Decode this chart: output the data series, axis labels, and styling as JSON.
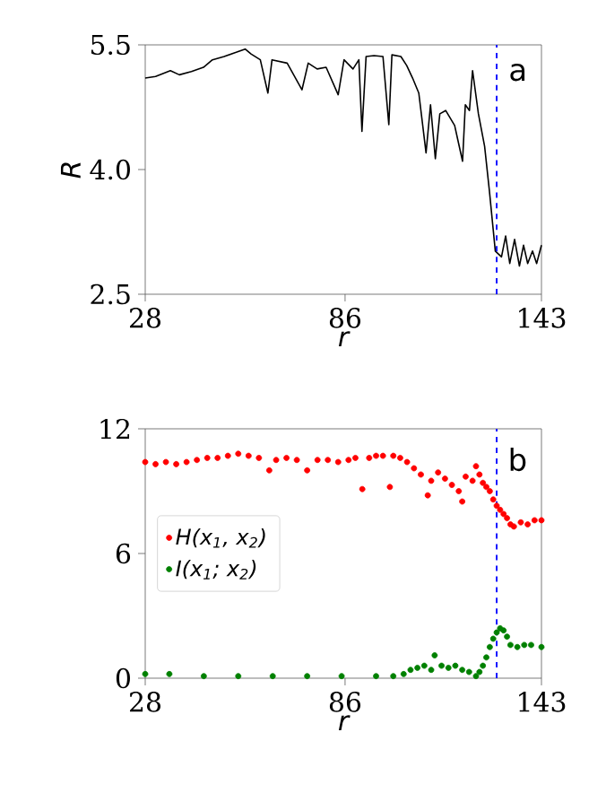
{
  "chart_data": [
    {
      "type": "line",
      "xlabel": "r",
      "ylabel": "R",
      "color": "#000000",
      "x": [
        28,
        31,
        35.3,
        37.9,
        41.4,
        44.9,
        47.5,
        50.9,
        54.4,
        57,
        58.7,
        61.4,
        63.6,
        64.8,
        69.2,
        73.5,
        75.3,
        77.9,
        80.5,
        84,
        85.7,
        88.3,
        90,
        90.9,
        92.1,
        94.4,
        97,
        98.7,
        99.6,
        102.2,
        103.9,
        105.6,
        107.4,
        109.5,
        110.8,
        112.2,
        113.5,
        115.2,
        117.8,
        120.1,
        120.9,
        122.1,
        123,
        124.7,
        126.5,
        127.9,
        129.6,
        131.4,
        132.6,
        133.8,
        135.2,
        136.6,
        137.8,
        139,
        140.4,
        141.6,
        143
      ],
      "values": [
        5.1,
        5.12,
        5.19,
        5.14,
        5.18,
        5.23,
        5.32,
        5.36,
        5.41,
        5.45,
        5.39,
        5.32,
        4.92,
        5.32,
        5.28,
        4.96,
        5.28,
        5.21,
        5.23,
        4.9,
        5.32,
        5.21,
        5.32,
        4.46,
        5.36,
        5.37,
        5.36,
        4.54,
        5.38,
        5.36,
        5.25,
        5.1,
        4.92,
        4.2,
        4.78,
        4.13,
        4.67,
        4.71,
        4.53,
        4.1,
        4.78,
        4.71,
        5.19,
        4.67,
        4.28,
        3.74,
        3.02,
        2.95,
        3.2,
        2.87,
        3.16,
        2.84,
        3.09,
        2.87,
        3.02,
        2.87,
        3.09
      ],
      "xlim": [
        28,
        143
      ],
      "ylim": [
        2.5,
        5.5
      ],
      "xticks": [
        28,
        86,
        143
      ],
      "yticks": [
        2.5,
        {
          "value": 4,
          "label": "4.0"
        },
        5.5
      ],
      "ref_lines": [
        {
          "axis": "x",
          "value": 130,
          "color": "#0000ff",
          "line_style": "dashed"
        }
      ],
      "annotations": [
        "a"
      ]
    },
    {
      "type": "scatter",
      "xlabel": "r",
      "marker": "circle",
      "legend": "left",
      "xlim": [
        28,
        143
      ],
      "ylim": [
        0,
        12
      ],
      "xticks": [
        28,
        86,
        143
      ],
      "yticks": [
        0,
        6,
        12
      ],
      "series": [
        {
          "name": "H(x$_{1}$, x$_{2}$)",
          "color": "#ff0000",
          "x": [
            28,
            31,
            34,
            37,
            40,
            43,
            46,
            49,
            52,
            55,
            58,
            61,
            64,
            66,
            69,
            72,
            75,
            78,
            81,
            84,
            87,
            89,
            91,
            93,
            95,
            97,
            99,
            100,
            102,
            104,
            106,
            108,
            110,
            111,
            113,
            115,
            117,
            119,
            120,
            121,
            123,
            124,
            125,
            126,
            127,
            128,
            129,
            130,
            131,
            132,
            133,
            134,
            135,
            137,
            139,
            141,
            143
          ],
          "values": [
            10.4,
            10.3,
            10.4,
            10.3,
            10.4,
            10.5,
            10.6,
            10.6,
            10.7,
            10.8,
            10.7,
            10.6,
            10.0,
            10.5,
            10.6,
            10.5,
            10.0,
            10.5,
            10.5,
            10.4,
            10.5,
            10.6,
            9.1,
            10.6,
            10.7,
            10.7,
            9.2,
            10.7,
            10.6,
            10.4,
            10.1,
            9.8,
            8.8,
            9.5,
            9.9,
            9.6,
            9.3,
            9.0,
            8.5,
            9.7,
            9.5,
            10.2,
            9.8,
            9.4,
            9.2,
            9.0,
            8.6,
            8.3,
            8.1,
            7.9,
            7.7,
            7.4,
            7.3,
            7.5,
            7.4,
            7.6,
            7.6
          ]
        },
        {
          "name": "I(x$_{1}$; x$_{2}$)",
          "color": "#008000",
          "x": [
            28,
            35,
            45,
            55,
            65,
            75,
            85,
            95,
            100,
            103,
            105,
            107,
            109,
            111,
            112,
            114,
            116,
            118,
            120,
            122,
            124,
            125,
            126,
            127,
            128,
            129,
            130,
            131,
            132,
            133,
            134,
            136,
            138,
            140,
            143
          ],
          "values": [
            0.2,
            0.2,
            0.1,
            0.1,
            0.1,
            0.1,
            0.1,
            0.1,
            0.1,
            0.2,
            0.4,
            0.5,
            0.6,
            0.4,
            1.1,
            0.6,
            0.5,
            0.6,
            0.4,
            0.3,
            0.1,
            0.3,
            0.6,
            1.0,
            1.5,
            1.9,
            2.2,
            2.4,
            2.3,
            2.0,
            1.6,
            1.5,
            1.6,
            1.6,
            1.5
          ]
        }
      ],
      "ref_lines": [
        {
          "axis": "x",
          "value": 130,
          "color": "#0000ff",
          "line_style": "dashed"
        }
      ],
      "annotations": [
        "b"
      ]
    }
  ]
}
